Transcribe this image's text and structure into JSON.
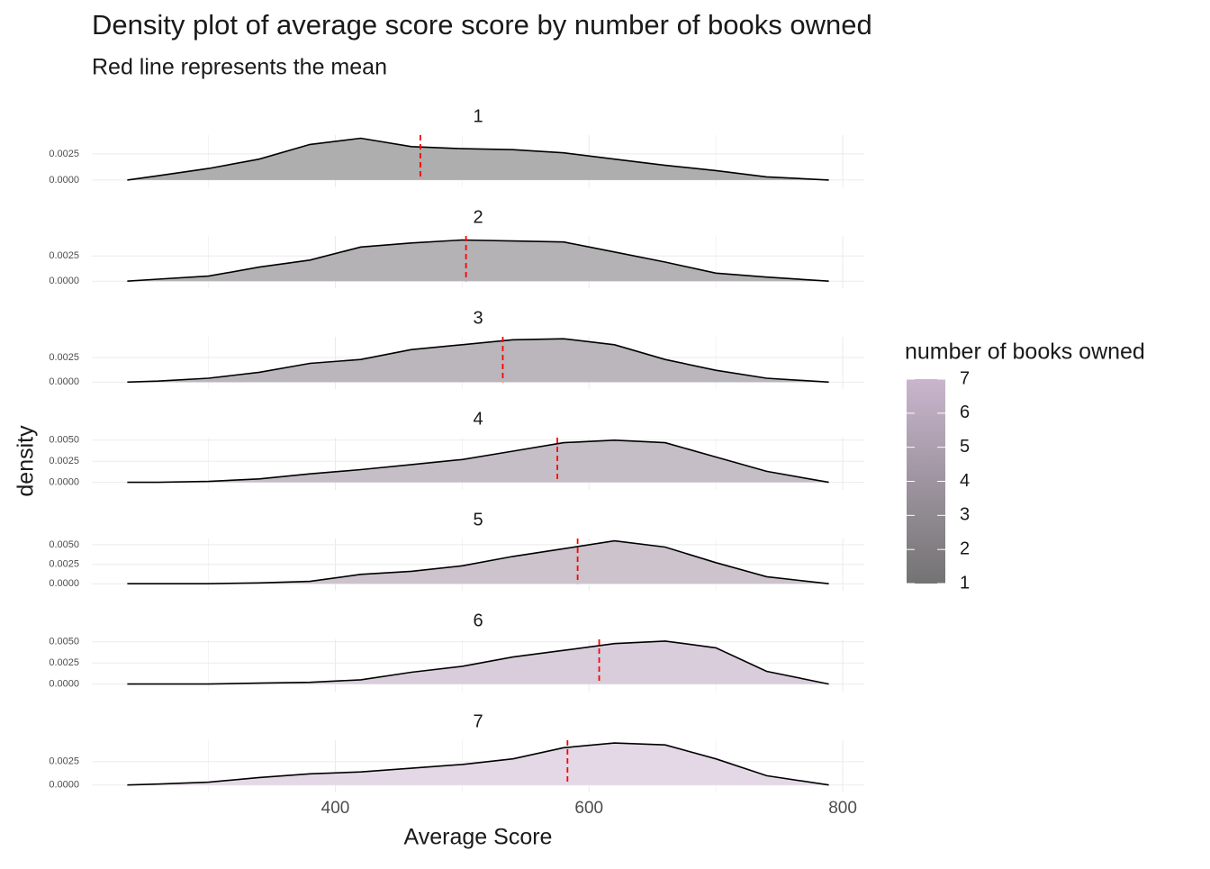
{
  "chart_data": {
    "type": "density",
    "title": "Density plot of average score score by number of books owned",
    "subtitle": "Red line represents the mean",
    "x_label": "Average Score",
    "y_label": "density",
    "xlim": [
      208,
      817
    ],
    "xticks": [
      400,
      600,
      800
    ],
    "xminor_ticks": [
      300,
      500,
      700
    ],
    "grid": true,
    "mean_color": "#ff0000",
    "x": [
      236,
      260,
      300,
      340,
      380,
      420,
      460,
      500,
      540,
      580,
      620,
      660,
      700,
      740,
      789
    ],
    "legend": {
      "title": "number of books owned",
      "ticks": [
        1,
        2,
        3,
        4,
        5,
        6,
        7
      ],
      "colors": [
        "#737373",
        "#c9b5cd"
      ],
      "position": "right"
    },
    "facets": [
      {
        "label": "1",
        "color": "#aeaeae",
        "ylim": [
          -0.0007,
          0.0043
        ],
        "yticks": [
          {
            "value": 0,
            "label": "0.0000"
          },
          0.0025
        ],
        "values": [
          0,
          0.0004,
          0.0011,
          0.002,
          0.0034,
          0.004,
          0.0032,
          0.003,
          0.0029,
          0.0026,
          0.002,
          0.0014,
          0.0009,
          0.0003,
          0
        ],
        "mean": 467
      },
      {
        "label": "2",
        "color": "#b4b2b4",
        "ylim": [
          -0.0007,
          0.0045
        ],
        "yticks": [
          {
            "value": 0,
            "label": "0.0000"
          },
          0.0025
        ],
        "values": [
          0,
          0.0002,
          0.0005,
          0.0014,
          0.0021,
          0.0034,
          0.0038,
          0.0041,
          0.004,
          0.0039,
          0.0029,
          0.0019,
          0.0008,
          0.0004,
          0
        ],
        "mean": 503
      },
      {
        "label": "3",
        "color": "#bbb6bc",
        "ylim": [
          -0.0007,
          0.0046
        ],
        "yticks": [
          {
            "value": 0,
            "label": "0.0000"
          },
          0.0025
        ],
        "values": [
          0,
          0.0001,
          0.0004,
          0.001,
          0.0019,
          0.0023,
          0.0033,
          0.0038,
          0.0043,
          0.0044,
          0.0038,
          0.0023,
          0.0012,
          0.0004,
          0
        ],
        "mean": 532
      },
      {
        "label": "4",
        "color": "#c5bec6",
        "ylim": [
          -0.0009,
          0.0053
        ],
        "yticks": [
          {
            "value": 0,
            "label": "0.0000"
          },
          0.0025,
          {
            "value": 0.005,
            "label": "0.0050"
          }
        ],
        "values": [
          0,
          0,
          0.0001,
          0.0004,
          0.001,
          0.0015,
          0.0021,
          0.0027,
          0.0037,
          0.0047,
          0.005,
          0.0047,
          0.003,
          0.0013,
          0
        ],
        "mean": 575
      },
      {
        "label": "5",
        "color": "#ccc3cd",
        "ylim": [
          -0.0009,
          0.0058
        ],
        "yticks": [
          {
            "value": 0,
            "label": "0.0000"
          },
          0.0025,
          {
            "value": 0.005,
            "label": "0.0050"
          }
        ],
        "values": [
          0,
          0,
          0,
          0.0001,
          0.0003,
          0.0012,
          0.0016,
          0.0023,
          0.0035,
          0.0045,
          0.0055,
          0.0047,
          0.0027,
          0.0009,
          0
        ],
        "mean": 591
      },
      {
        "label": "6",
        "color": "#d9cddb",
        "ylim": [
          -0.0009,
          0.0053
        ],
        "yticks": [
          {
            "value": 0,
            "label": "0.0000"
          },
          0.0025,
          {
            "value": 0.005,
            "label": "0.0050"
          }
        ],
        "values": [
          0,
          0,
          0,
          0.0001,
          0.0002,
          0.0005,
          0.0014,
          0.0021,
          0.0032,
          0.004,
          0.0048,
          0.0051,
          0.0043,
          0.0015,
          0
        ],
        "mean": 608
      },
      {
        "label": "7",
        "color": "#e4d8e6",
        "ylim": [
          -0.0008,
          0.0048
        ],
        "yticks": [
          {
            "value": 0,
            "label": "0.0000"
          },
          0.0025
        ],
        "values": [
          0,
          0.0001,
          0.0003,
          0.0008,
          0.0012,
          0.0014,
          0.0018,
          0.0022,
          0.0028,
          0.004,
          0.0045,
          0.0043,
          0.0028,
          0.001,
          0
        ],
        "mean": 583
      }
    ]
  }
}
